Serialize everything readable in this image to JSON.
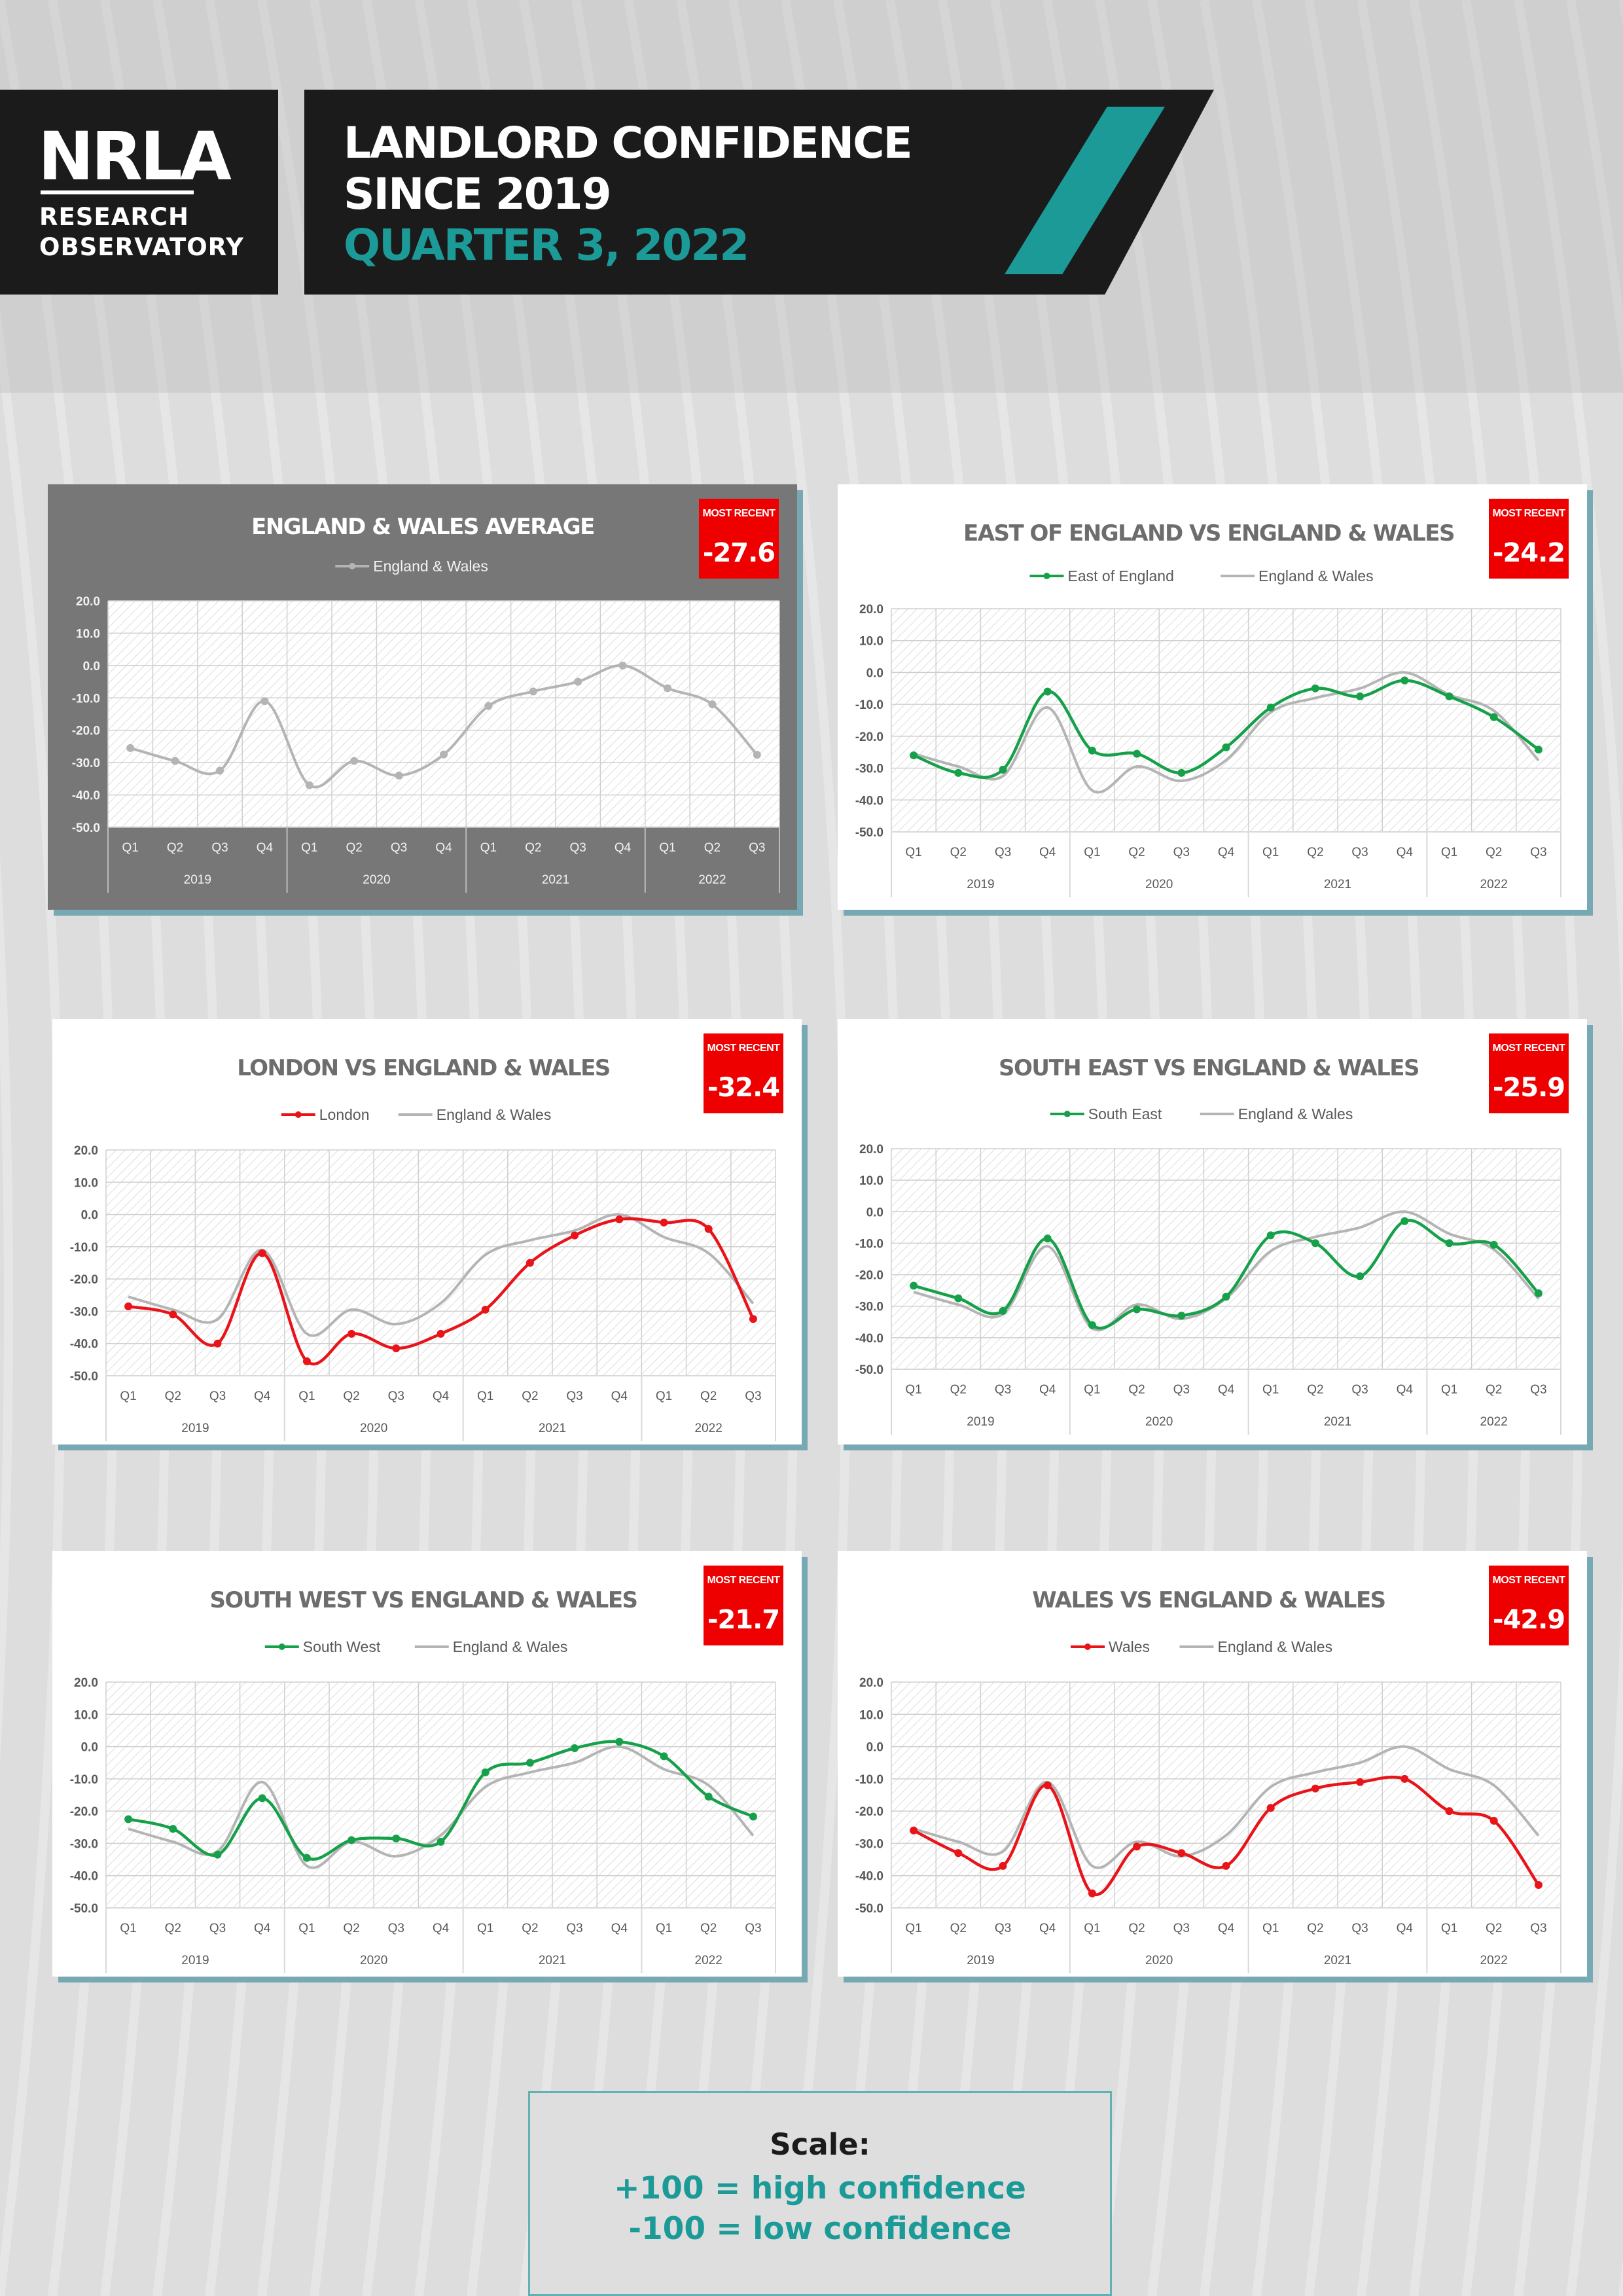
{
  "header": {
    "logo_text": "NRLA",
    "logo_sub1": "RESEARCH",
    "logo_sub2": "OBSERVATORY",
    "title_line1": "LANDLORD CONFIDENCE",
    "title_line2": "SINCE 2019",
    "title_line3": "QUARTER 3, 2022",
    "teal": "#1b9a97",
    "dark": "#1b1b1b"
  },
  "scale": {
    "title": "Scale:",
    "line1": "+100 = high confidence",
    "line2": "-100  = low confidence"
  },
  "badge_label": "MOST RECENT",
  "colors": {
    "green": "#16a04a",
    "red": "#e8141a",
    "grey": "#b4b4b4",
    "badge": "#ee0000"
  },
  "chart_data": [
    {
      "type": "line",
      "panel": "avg",
      "title": "ENGLAND & WALES AVERAGE",
      "most_recent": "-27.6",
      "ylim": [
        -50,
        20
      ],
      "yticks": [
        "20.0",
        "10.0",
        "0.0",
        "-10.0",
        "-20.0",
        "-30.0",
        "-40.0",
        "-50.0"
      ],
      "quarters": [
        "Q1",
        "Q2",
        "Q3",
        "Q4",
        "Q1",
        "Q2",
        "Q3",
        "Q4",
        "Q1",
        "Q2",
        "Q3",
        "Q4",
        "Q1",
        "Q2",
        "Q3"
      ],
      "years": [
        "2019",
        "2020",
        "2021",
        "2022"
      ],
      "series": [
        {
          "name": "England & Wales",
          "values": [
            -25.5,
            -29.5,
            -32.5,
            -11,
            -37,
            -29.5,
            -34,
            -27.5,
            -12.5,
            -8,
            -5,
            0,
            -7,
            -12,
            -27.6
          ]
        }
      ]
    },
    {
      "type": "line",
      "panel": "east",
      "title": "EAST OF ENGLAND VS ENGLAND & WALES",
      "most_recent": "-24.2",
      "ylim": [
        -50,
        20
      ],
      "yticks": [
        "20.0",
        "10.0",
        "0.0",
        "-10.0",
        "-20.0",
        "-30.0",
        "-40.0",
        "-50.0"
      ],
      "quarters": [
        "Q1",
        "Q2",
        "Q3",
        "Q4",
        "Q1",
        "Q2",
        "Q3",
        "Q4",
        "Q1",
        "Q2",
        "Q3",
        "Q4",
        "Q1",
        "Q2",
        "Q3"
      ],
      "years": [
        "2019",
        "2020",
        "2021",
        "2022"
      ],
      "series": [
        {
          "name": "East of England",
          "values": [
            -26,
            -31.5,
            -30.5,
            -6,
            -24.5,
            -25.5,
            -31.5,
            -23.5,
            -11,
            -5,
            -7.5,
            -2.5,
            -7.5,
            -14,
            -24.2
          ]
        },
        {
          "name": "England & Wales",
          "values": [
            -25.5,
            -29.5,
            -32.5,
            -11,
            -37,
            -29.5,
            -34,
            -27.5,
            -12.5,
            -8,
            -5,
            0,
            -7,
            -12,
            -27.6
          ]
        }
      ]
    },
    {
      "type": "line",
      "panel": "london",
      "title": "LONDON VS ENGLAND & WALES",
      "most_recent": "-32.4",
      "ylim": [
        -50,
        20
      ],
      "yticks": [
        "20.0",
        "10.0",
        "0.0",
        "-10.0",
        "-20.0",
        "-30.0",
        "-40.0",
        "-50.0"
      ],
      "quarters": [
        "Q1",
        "Q2",
        "Q3",
        "Q4",
        "Q1",
        "Q2",
        "Q3",
        "Q4",
        "Q1",
        "Q2",
        "Q3",
        "Q4",
        "Q1",
        "Q2",
        "Q3"
      ],
      "years": [
        "2019",
        "2020",
        "2021",
        "2022"
      ],
      "series": [
        {
          "name": "London",
          "values": [
            -28.5,
            -31,
            -40,
            -12,
            -45.5,
            -37,
            -41.5,
            -37,
            -29.5,
            -15,
            -6.5,
            -1.5,
            -2.5,
            -4.5,
            -32.4
          ]
        },
        {
          "name": "England & Wales",
          "values": [
            -25.5,
            -29.5,
            -32.5,
            -11,
            -37,
            -29.5,
            -34,
            -27.5,
            -12.5,
            -8,
            -5,
            0,
            -7,
            -12,
            -27.6
          ]
        }
      ]
    },
    {
      "type": "line",
      "panel": "southeast",
      "title": "SOUTH EAST VS ENGLAND & WALES",
      "most_recent": "-25.9",
      "ylim": [
        -50,
        20
      ],
      "yticks": [
        "20.0",
        "10.0",
        "0.0",
        "-10.0",
        "-20.0",
        "-30.0",
        "-40.0",
        "-50.0"
      ],
      "quarters": [
        "Q1",
        "Q2",
        "Q3",
        "Q4",
        "Q1",
        "Q2",
        "Q3",
        "Q4",
        "Q1",
        "Q2",
        "Q3",
        "Q4",
        "Q1",
        "Q2",
        "Q3"
      ],
      "years": [
        "2019",
        "2020",
        "2021",
        "2022"
      ],
      "series": [
        {
          "name": "South East",
          "values": [
            -23.5,
            -27.5,
            -31.5,
            -8.5,
            -36,
            -31,
            -33,
            -27,
            -7.5,
            -10,
            -20.5,
            -3,
            -10,
            -10.5,
            -25.9
          ]
        },
        {
          "name": "England & Wales",
          "values": [
            -25.5,
            -29.5,
            -32.5,
            -11,
            -37,
            -29.5,
            -34,
            -27.5,
            -12.5,
            -8,
            -5,
            0,
            -7,
            -12,
            -27.6
          ]
        }
      ]
    },
    {
      "type": "line",
      "panel": "southwest",
      "title": "SOUTH WEST VS ENGLAND & WALES",
      "most_recent": "-21.7",
      "ylim": [
        -50,
        20
      ],
      "yticks": [
        "20.0",
        "10.0",
        "0.0",
        "-10.0",
        "-20.0",
        "-30.0",
        "-40.0",
        "-50.0"
      ],
      "quarters": [
        "Q1",
        "Q2",
        "Q3",
        "Q4",
        "Q1",
        "Q2",
        "Q3",
        "Q4",
        "Q1",
        "Q2",
        "Q3",
        "Q4",
        "Q1",
        "Q2",
        "Q3"
      ],
      "years": [
        "2019",
        "2020",
        "2021",
        "2022"
      ],
      "series": [
        {
          "name": "South West",
          "values": [
            -22.5,
            -25.5,
            -33.5,
            -16,
            -34.5,
            -29,
            -28.5,
            -29.5,
            -8,
            -5,
            -0.5,
            1.5,
            -3,
            -15.5,
            -21.7
          ]
        },
        {
          "name": "England & Wales",
          "values": [
            -25.5,
            -29.5,
            -32.5,
            -11,
            -37,
            -29.5,
            -34,
            -27.5,
            -12.5,
            -8,
            -5,
            0,
            -7,
            -12,
            -27.6
          ]
        }
      ]
    },
    {
      "type": "line",
      "panel": "wales",
      "title": "WALES VS ENGLAND & WALES",
      "most_recent": "-42.9",
      "ylim": [
        -50,
        20
      ],
      "yticks": [
        "20.0",
        "10.0",
        "0.0",
        "-10.0",
        "-20.0",
        "-30.0",
        "-40.0",
        "-50.0"
      ],
      "quarters": [
        "Q1",
        "Q2",
        "Q3",
        "Q4",
        "Q1",
        "Q2",
        "Q3",
        "Q4",
        "Q1",
        "Q2",
        "Q3",
        "Q4",
        "Q1",
        "Q2",
        "Q3"
      ],
      "years": [
        "2019",
        "2020",
        "2021",
        "2022"
      ],
      "series": [
        {
          "name": "Wales",
          "values": [
            -26,
            -33,
            -37,
            -12,
            -45.5,
            -31,
            -33,
            -37,
            -19,
            -13,
            -11,
            -10,
            -20,
            -23,
            -42.9
          ]
        },
        {
          "name": "England & Wales",
          "values": [
            -25.5,
            -29.5,
            -32.5,
            -11,
            -37,
            -29.5,
            -34,
            -27.5,
            -12.5,
            -8,
            -5,
            0,
            -7,
            -12,
            -27.6
          ]
        }
      ]
    }
  ]
}
